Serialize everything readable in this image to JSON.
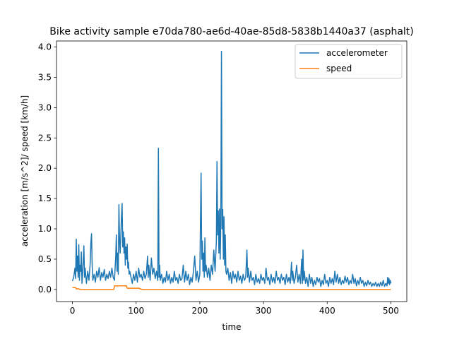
{
  "chart_data": {
    "type": "line",
    "title": "Bike activity sample e70da780-ae6d-40ae-85d8-5838b1440a37 (asphalt)",
    "xlabel": "time",
    "ylabel": "acceleration [m/s^2]/ speed [km/h]",
    "xlim": [
      -25,
      525
    ],
    "ylim": [
      -0.2,
      4.1
    ],
    "xticks": [
      0,
      100,
      200,
      300,
      400,
      500
    ],
    "yticks": [
      0.0,
      0.5,
      1.0,
      1.5,
      2.0,
      2.5,
      3.0,
      3.5,
      4.0
    ],
    "ytick_labels": [
      "0.0",
      "0.5",
      "1.0",
      "1.5",
      "2.0",
      "2.5",
      "3.0",
      "3.5",
      "4.0"
    ],
    "legend_position": "top-right",
    "series": [
      {
        "name": "accelerometer",
        "color": "#1f77b4",
        "points": [
          [
            0,
            0.14
          ],
          [
            2,
            0.2
          ],
          [
            4,
            0.35
          ],
          [
            5,
            0.18
          ],
          [
            6,
            0.83
          ],
          [
            7,
            0.3
          ],
          [
            8,
            0.55
          ],
          [
            9,
            0.2
          ],
          [
            10,
            0.74
          ],
          [
            11,
            0.15
          ],
          [
            12,
            0.4
          ],
          [
            13,
            0.3
          ],
          [
            14,
            0.62
          ],
          [
            15,
            0.1
          ],
          [
            16,
            0.25
          ],
          [
            17,
            0.48
          ],
          [
            18,
            0.72
          ],
          [
            19,
            0.2
          ],
          [
            20,
            0.35
          ],
          [
            22,
            0.1
          ],
          [
            24,
            0.3
          ],
          [
            26,
            0.15
          ],
          [
            28,
            0.45
          ],
          [
            29,
            0.78
          ],
          [
            30,
            0.92
          ],
          [
            31,
            0.4
          ],
          [
            32,
            0.15
          ],
          [
            34,
            0.25
          ],
          [
            36,
            0.12
          ],
          [
            38,
            0.3
          ],
          [
            40,
            0.2
          ],
          [
            42,
            0.36
          ],
          [
            44,
            0.15
          ],
          [
            46,
            0.28
          ],
          [
            48,
            0.2
          ],
          [
            50,
            0.33
          ],
          [
            52,
            0.15
          ],
          [
            54,
            0.25
          ],
          [
            56,
            0.18
          ],
          [
            58,
            0.3
          ],
          [
            60,
            0.2
          ],
          [
            62,
            0.35
          ],
          [
            64,
            0.2
          ],
          [
            66,
            0.15
          ],
          [
            67,
            0.35
          ],
          [
            68,
            0.55
          ],
          [
            69,
            0.9
          ],
          [
            70,
            0.3
          ],
          [
            71,
            0.6
          ],
          [
            72,
            0.25
          ],
          [
            73,
            1.4
          ],
          [
            74,
            0.8
          ],
          [
            75,
            0.6
          ],
          [
            76,
            0.9
          ],
          [
            77,
            1.2
          ],
          [
            78,
            1.42
          ],
          [
            79,
            0.7
          ],
          [
            80,
            0.95
          ],
          [
            81,
            0.6
          ],
          [
            82,
            0.85
          ],
          [
            83,
            0.4
          ],
          [
            84,
            0.7
          ],
          [
            85,
            0.5
          ],
          [
            86,
            0.75
          ],
          [
            87,
            0.35
          ],
          [
            88,
            0.45
          ],
          [
            89,
            0.25
          ],
          [
            90,
            0.3
          ],
          [
            92,
            0.2
          ],
          [
            94,
            0.1
          ],
          [
            96,
            0.25
          ],
          [
            98,
            0.15
          ],
          [
            100,
            0.3
          ],
          [
            102,
            0.12
          ],
          [
            104,
            0.35
          ],
          [
            106,
            0.2
          ],
          [
            108,
            0.25
          ],
          [
            110,
            0.15
          ],
          [
            112,
            0.3
          ],
          [
            114,
            0.18
          ],
          [
            116,
            0.25
          ],
          [
            118,
            0.55
          ],
          [
            119,
            0.2
          ],
          [
            120,
            0.4
          ],
          [
            122,
            0.15
          ],
          [
            124,
            0.52
          ],
          [
            126,
            0.25
          ],
          [
            128,
            0.35
          ],
          [
            130,
            0.18
          ],
          [
            132,
            0.3
          ],
          [
            134,
            0.15
          ],
          [
            135,
            2.33
          ],
          [
            136,
            0.2
          ],
          [
            137,
            0.4
          ],
          [
            138,
            0.15
          ],
          [
            140,
            0.25
          ],
          [
            142,
            0.1
          ],
          [
            144,
            0.2
          ],
          [
            146,
            0.12
          ],
          [
            148,
            0.3
          ],
          [
            150,
            0.15
          ],
          [
            152,
            0.25
          ],
          [
            154,
            0.1
          ],
          [
            156,
            0.2
          ],
          [
            158,
            0.12
          ],
          [
            160,
            0.3
          ],
          [
            162,
            0.15
          ],
          [
            164,
            0.2
          ],
          [
            166,
            0.1
          ],
          [
            168,
            0.25
          ],
          [
            170,
            0.15
          ],
          [
            172,
            0.18
          ],
          [
            174,
            0.4
          ],
          [
            176,
            0.12
          ],
          [
            178,
            0.3
          ],
          [
            180,
            0.15
          ],
          [
            182,
            0.25
          ],
          [
            184,
            0.08
          ],
          [
            186,
            0.2
          ],
          [
            188,
            0.12
          ],
          [
            190,
            0.3
          ],
          [
            192,
            0.55
          ],
          [
            194,
            0.15
          ],
          [
            196,
            0.3
          ],
          [
            198,
            0.12
          ],
          [
            200,
            0.25
          ],
          [
            202,
            1.92
          ],
          [
            203,
            0.5
          ],
          [
            204,
            0.8
          ],
          [
            205,
            0.3
          ],
          [
            206,
            0.6
          ],
          [
            207,
            0.2
          ],
          [
            208,
            0.85
          ],
          [
            209,
            0.3
          ],
          [
            210,
            0.4
          ],
          [
            212,
            0.2
          ],
          [
            214,
            0.35
          ],
          [
            216,
            0.15
          ],
          [
            218,
            0.4
          ],
          [
            220,
            0.25
          ],
          [
            222,
            0.65
          ],
          [
            224,
            0.3
          ],
          [
            226,
            0.8
          ],
          [
            227,
            2.11
          ],
          [
            228,
            0.9
          ],
          [
            229,
            1.3
          ],
          [
            230,
            0.6
          ],
          [
            231,
            1.33
          ],
          [
            232,
            0.5
          ],
          [
            233,
            1.1
          ],
          [
            234,
            3.93
          ],
          [
            235,
            1.0
          ],
          [
            236,
            1.32
          ],
          [
            237,
            0.5
          ],
          [
            238,
            1.2
          ],
          [
            239,
            0.4
          ],
          [
            240,
            0.9
          ],
          [
            241,
            0.3
          ],
          [
            242,
            0.25
          ],
          [
            244,
            0.35
          ],
          [
            246,
            0.15
          ],
          [
            248,
            0.28
          ],
          [
            250,
            0.1
          ],
          [
            252,
            0.3
          ],
          [
            254,
            0.18
          ],
          [
            256,
            0.25
          ],
          [
            258,
            0.12
          ],
          [
            260,
            0.3
          ],
          [
            262,
            0.15
          ],
          [
            264,
            0.22
          ],
          [
            266,
            0.1
          ],
          [
            268,
            0.25
          ],
          [
            270,
            0.15
          ],
          [
            272,
            0.2
          ],
          [
            274,
            0.65
          ],
          [
            275,
            0.2
          ],
          [
            276,
            0.35
          ],
          [
            278,
            0.12
          ],
          [
            280,
            0.3
          ],
          [
            282,
            0.15
          ],
          [
            284,
            0.2
          ],
          [
            286,
            0.08
          ],
          [
            288,
            0.25
          ],
          [
            290,
            0.12
          ],
          [
            292,
            0.18
          ],
          [
            294,
            0.1
          ],
          [
            296,
            0.25
          ],
          [
            298,
            0.15
          ],
          [
            300,
            0.2
          ],
          [
            302,
            0.1
          ],
          [
            304,
            0.35
          ],
          [
            306,
            0.15
          ],
          [
            308,
            0.2
          ],
          [
            310,
            0.08
          ],
          [
            312,
            0.25
          ],
          [
            314,
            0.12
          ],
          [
            316,
            0.2
          ],
          [
            318,
            0.1
          ],
          [
            320,
            0.3
          ],
          [
            322,
            0.15
          ],
          [
            324,
            0.2
          ],
          [
            326,
            0.1
          ],
          [
            328,
            0.25
          ],
          [
            330,
            0.15
          ],
          [
            332,
            0.2
          ],
          [
            334,
            0.08
          ],
          [
            336,
            0.25
          ],
          [
            338,
            0.12
          ],
          [
            340,
            0.2
          ],
          [
            342,
            0.1
          ],
          [
            344,
            0.45
          ],
          [
            345,
            0.15
          ],
          [
            346,
            0.3
          ],
          [
            348,
            0.1
          ],
          [
            350,
            0.2
          ],
          [
            352,
            0.4
          ],
          [
            354,
            0.12
          ],
          [
            356,
            0.25
          ],
          [
            358,
            0.1
          ],
          [
            360,
            0.5
          ],
          [
            361,
            0.1
          ],
          [
            362,
            0.65
          ],
          [
            363,
            0.15
          ],
          [
            364,
            0.3
          ],
          [
            366,
            0.1
          ],
          [
            368,
            0.2
          ],
          [
            370,
            0.05
          ],
          [
            372,
            0.25
          ],
          [
            374,
            0.1
          ],
          [
            376,
            0.2
          ],
          [
            378,
            0.05
          ],
          [
            380,
            0.15
          ],
          [
            382,
            0.08
          ],
          [
            384,
            0.2
          ],
          [
            386,
            0.12
          ],
          [
            388,
            0.18
          ],
          [
            390,
            0.05
          ],
          [
            392,
            0.15
          ],
          [
            394,
            0.08
          ],
          [
            396,
            0.25
          ],
          [
            398,
            0.1
          ],
          [
            400,
            0.15
          ],
          [
            402,
            0.05
          ],
          [
            404,
            0.2
          ],
          [
            406,
            0.1
          ],
          [
            408,
            0.18
          ],
          [
            410,
            0.08
          ],
          [
            412,
            0.3
          ],
          [
            414,
            0.12
          ],
          [
            416,
            0.25
          ],
          [
            418,
            0.1
          ],
          [
            420,
            0.2
          ],
          [
            422,
            0.08
          ],
          [
            424,
            0.15
          ],
          [
            426,
            0.1
          ],
          [
            428,
            0.22
          ],
          [
            430,
            0.12
          ],
          [
            432,
            0.2
          ],
          [
            434,
            0.08
          ],
          [
            436,
            0.15
          ],
          [
            438,
            0.1
          ],
          [
            440,
            0.25
          ],
          [
            442,
            0.1
          ],
          [
            444,
            0.18
          ],
          [
            446,
            0.06
          ],
          [
            448,
            0.15
          ],
          [
            450,
            0.08
          ],
          [
            452,
            0.2
          ],
          [
            454,
            0.1
          ],
          [
            456,
            0.15
          ],
          [
            458,
            0.05
          ],
          [
            460,
            0.12
          ],
          [
            462,
            0.06
          ],
          [
            464,
            0.15
          ],
          [
            466,
            0.08
          ],
          [
            468,
            0.12
          ],
          [
            470,
            0.05
          ],
          [
            472,
            0.1
          ],
          [
            474,
            0.06
          ],
          [
            476,
            0.12
          ],
          [
            478,
            0.05
          ],
          [
            480,
            0.1
          ],
          [
            482,
            0.05
          ],
          [
            484,
            0.12
          ],
          [
            486,
            0.06
          ],
          [
            488,
            0.15
          ],
          [
            490,
            0.05
          ],
          [
            492,
            0.1
          ],
          [
            494,
            0.06
          ],
          [
            495,
            0.2
          ],
          [
            496,
            0.1
          ],
          [
            497,
            0.18
          ],
          [
            498,
            0.08
          ],
          [
            499,
            0.15
          ],
          [
            500,
            0.1
          ]
        ]
      },
      {
        "name": "speed",
        "color": "#ff7f0e",
        "points": [
          [
            0,
            0.03
          ],
          [
            5,
            0.03
          ],
          [
            6,
            0.01
          ],
          [
            10,
            0.01
          ],
          [
            12,
            0.0
          ],
          [
            65,
            0.0
          ],
          [
            66,
            0.06
          ],
          [
            85,
            0.06
          ],
          [
            86,
            0.02
          ],
          [
            105,
            0.02
          ],
          [
            106,
            0.01
          ],
          [
            110,
            0.0
          ],
          [
            500,
            0.0
          ]
        ]
      }
    ]
  }
}
